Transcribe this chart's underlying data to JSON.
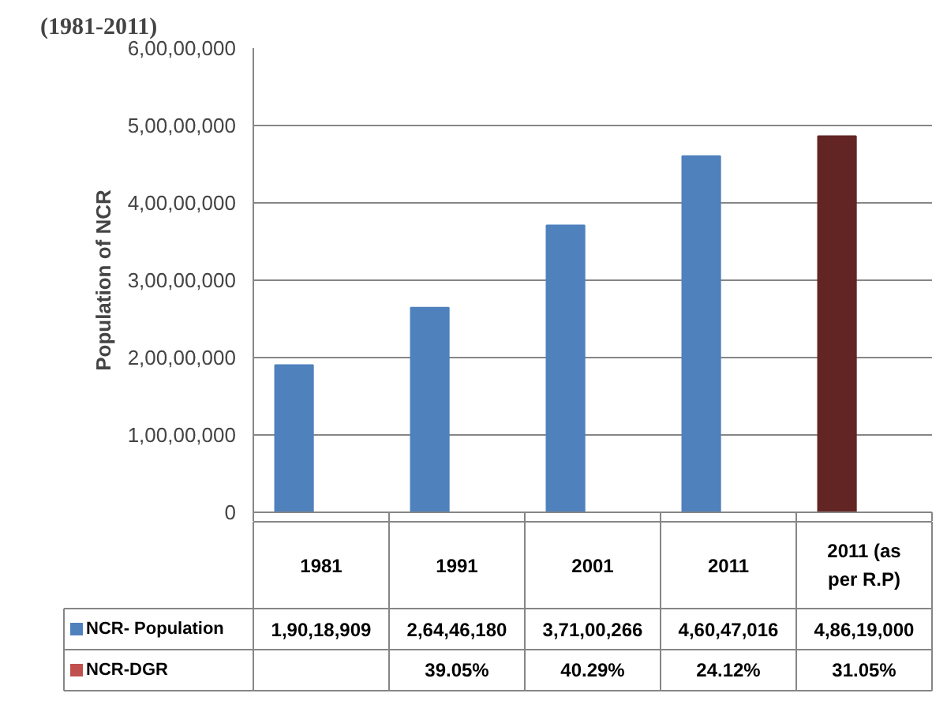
{
  "chart_data": {
    "type": "bar",
    "title": "(1981-2011)",
    "ylabel": "Population of NCR",
    "categories": [
      "1981",
      "1991",
      "2001",
      "2011",
      "2011 (as per R.P)"
    ],
    "series": [
      {
        "name": "NCR- Population",
        "color": "#4f81bd",
        "colors": [
          "#4f81bd",
          "#4f81bd",
          "#4f81bd",
          "#4f81bd",
          "#632523"
        ],
        "values": [
          19018909,
          26446180,
          37100266,
          46047016,
          48619000
        ],
        "value_labels": [
          "1,90,18,909",
          "2,64,46,180",
          "3,71,00,266",
          "4,60,47,016",
          "4,86,19,000"
        ]
      },
      {
        "name": "NCR-DGR",
        "color": "#c0504d",
        "values": [
          null,
          39.05,
          40.29,
          24.12,
          31.05
        ],
        "value_labels": [
          null,
          "39.05%",
          "40.29%",
          "24.12%",
          "31.05%"
        ]
      }
    ],
    "ylim": [
      0,
      60000000
    ],
    "yticks": [
      {
        "value": 0,
        "label": "0"
      },
      {
        "value": 10000000,
        "label": "1,00,00,000"
      },
      {
        "value": 20000000,
        "label": "2,00,00,000"
      },
      {
        "value": 30000000,
        "label": "3,00,00,000"
      },
      {
        "value": 40000000,
        "label": "4,00,00,000"
      },
      {
        "value": 50000000,
        "label": "5,00,00,000"
      },
      {
        "value": 60000000,
        "label": "6,00,00,000"
      }
    ],
    "grid": "y",
    "legend": "bottom"
  }
}
